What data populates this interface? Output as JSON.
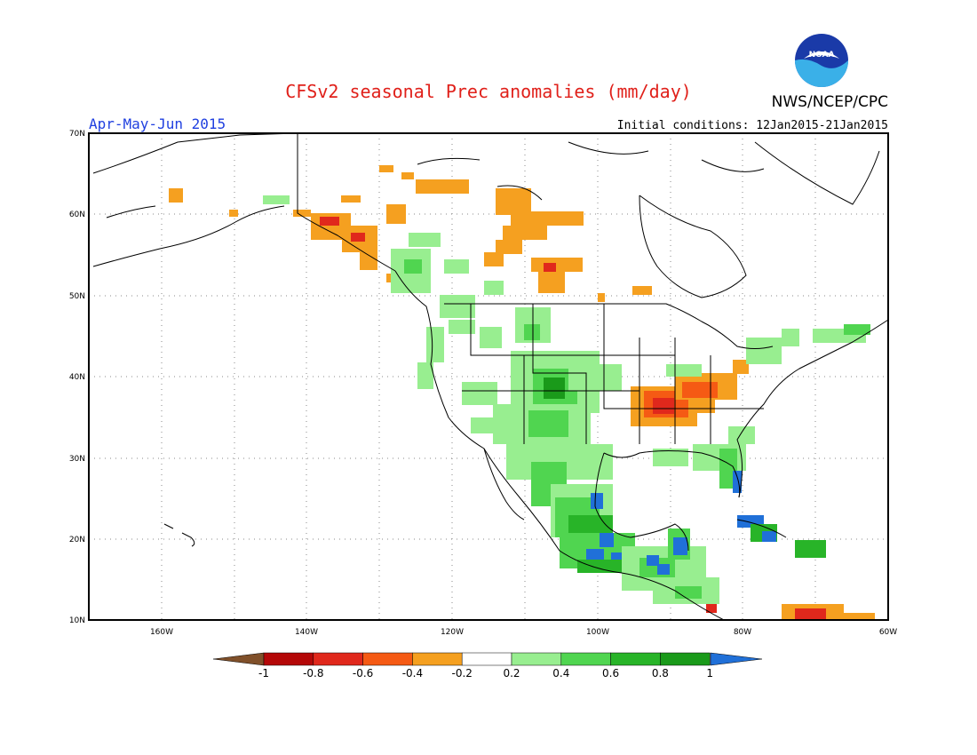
{
  "title": "CFSv2 seasonal Prec anomalies (mm/day)",
  "season": "Apr-May-Jun 2015",
  "initial_conditions": "Initial conditions: 12Jan2015-21Jan2015",
  "agency": "NWS/NCEP/CPC",
  "logo_text": "NOAA",
  "colors": {
    "title": "#e0201a",
    "season": "#2040e0",
    "text": "#000000",
    "wet_light": "#98ee90",
    "wet_med": "#50d550",
    "wet_dark": "#28b428",
    "wet_darker": "#1a9a1a",
    "wet_max": "#2070d8",
    "dry_light": "#f5a020",
    "dry_med": "#f55a14",
    "dry_dark": "#e0281c",
    "dry_darker": "#b40808",
    "dry_max": "#80502a"
  },
  "map": {
    "lat_labels": [
      "70N",
      "60N",
      "50N",
      "40N",
      "30N",
      "20N",
      "10N"
    ],
    "lon_labels": [
      "160W",
      "140W",
      "120W",
      "100W",
      "80W",
      "60W"
    ]
  },
  "legend": {
    "labels": [
      "-1",
      "-0.8",
      "-0.6",
      "-0.4",
      "-0.2",
      "0.2",
      "0.4",
      "0.6",
      "0.8",
      "1"
    ],
    "colors": [
      "#b40808",
      "#e0281c",
      "#f55a14",
      "#f5a020",
      "#ffffff",
      "#98ee90",
      "#50d550",
      "#28b428",
      "#1a9a1a"
    ],
    "low_end": "#80502a",
    "high_end": "#2070d8"
  }
}
